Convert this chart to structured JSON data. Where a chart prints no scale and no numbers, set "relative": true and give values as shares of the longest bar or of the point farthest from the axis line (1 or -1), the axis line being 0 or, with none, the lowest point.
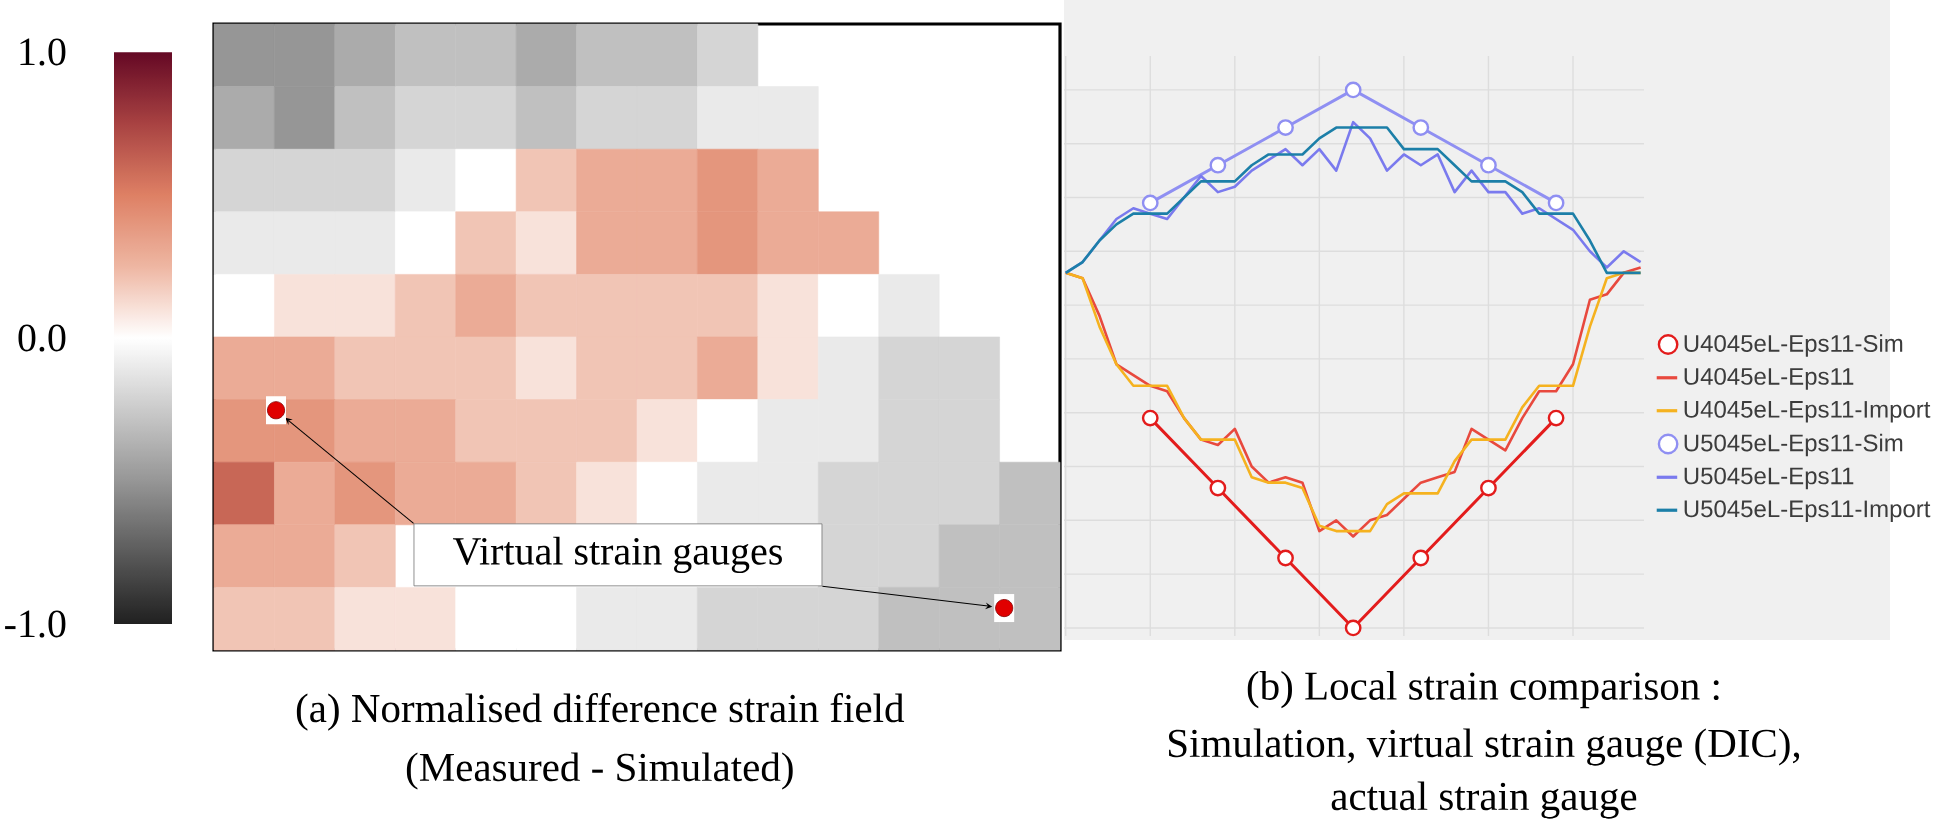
{
  "chart_data": [
    {
      "type": "heatmap",
      "title": "(a) Normalised difference strain field",
      "subtitle": "(Measured - Simulated)",
      "categories": [
        null,
        null,
        null,
        null,
        null,
        null,
        null,
        null,
        null,
        null,
        null,
        null,
        null,
        null
      ],
      "y_categories": [
        null,
        null,
        null,
        null,
        null,
        null,
        null,
        null,
        null,
        null
      ],
      "cells": [
        [
          -0.5,
          -0.5,
          -0.4,
          -0.3,
          -0.3,
          -0.4,
          -0.3,
          -0.3,
          -0.2,
          null,
          null,
          null,
          null,
          null
        ],
        [
          -0.4,
          -0.5,
          -0.3,
          -0.2,
          -0.2,
          -0.3,
          -0.2,
          -0.2,
          -0.1,
          -0.1,
          null,
          null,
          null,
          null
        ],
        [
          -0.2,
          -0.2,
          -0.2,
          -0.1,
          0.0,
          0.2,
          0.3,
          0.3,
          0.4,
          0.3,
          null,
          null,
          null,
          null
        ],
        [
          -0.1,
          -0.1,
          -0.1,
          0.0,
          0.2,
          0.1,
          0.3,
          0.3,
          0.4,
          0.3,
          0.3,
          null,
          null,
          null
        ],
        [
          0.0,
          0.1,
          0.1,
          0.2,
          0.3,
          0.2,
          0.2,
          0.2,
          0.2,
          0.1,
          0.0,
          -0.1,
          null,
          null
        ],
        [
          0.3,
          0.3,
          0.2,
          0.2,
          0.2,
          0.1,
          0.2,
          0.2,
          0.3,
          0.1,
          -0.1,
          -0.2,
          -0.2,
          null
        ],
        [
          0.4,
          0.4,
          0.3,
          0.3,
          0.2,
          0.2,
          0.2,
          0.1,
          0.0,
          -0.1,
          -0.1,
          -0.2,
          -0.2,
          null
        ],
        [
          0.6,
          0.3,
          0.4,
          0.3,
          0.3,
          0.2,
          0.1,
          0.0,
          -0.1,
          -0.1,
          -0.2,
          -0.2,
          -0.2,
          -0.3
        ],
        [
          0.3,
          0.3,
          0.2,
          null,
          null,
          null,
          null,
          null,
          null,
          null,
          -0.2,
          -0.2,
          -0.3,
          -0.3
        ],
        [
          0.2,
          0.2,
          0.1,
          0.1,
          0.0,
          0.0,
          -0.1,
          -0.1,
          -0.2,
          -0.2,
          -0.2,
          -0.3,
          -0.3,
          -0.3
        ]
      ],
      "clim": [
        -1,
        1
      ],
      "cticks": [
        {
          "value": 1,
          "label": "1.0"
        },
        {
          "value": 0,
          "label": "0.0"
        },
        {
          "value": -1,
          "label": "-1.0"
        }
      ],
      "annotations": [
        "Virtual strain gauges"
      ]
    },
    {
      "type": "line",
      "title": "(b) Local strain comparison :",
      "subtitle": "Simulation, virtual strain gauge (DIC), actual strain gauge",
      "categories": [
        null,
        null,
        null,
        null,
        null,
        null,
        null,
        null,
        null,
        null,
        null,
        null,
        null,
        null,
        null,
        null,
        null,
        null,
        null,
        null,
        null,
        null,
        null,
        null,
        null,
        null,
        null,
        null,
        null,
        null,
        null,
        null,
        null,
        null,
        null
      ],
      "relative": true,
      "grid": true,
      "legend": "right",
      "series": [
        {
          "name": "U4045eL-Eps11-Sim",
          "color": "#e31c1c",
          "marker": "circle",
          "values": [
            null,
            null,
            null,
            null,
            null,
            0.39,
            null,
            null,
            null,
            0.26,
            null,
            null,
            null,
            0.13,
            null,
            null,
            null,
            0.0,
            null,
            null,
            null,
            0.13,
            null,
            null,
            null,
            0.26,
            null,
            null,
            null,
            0.39,
            null,
            null,
            null,
            null,
            null
          ]
        },
        {
          "name": "U4045eL-Eps11",
          "color": "#e8493e",
          "values": [
            0.66,
            0.65,
            0.58,
            0.49,
            0.47,
            0.45,
            0.44,
            0.39,
            0.35,
            0.34,
            0.37,
            0.3,
            0.27,
            0.28,
            0.27,
            0.18,
            0.2,
            0.17,
            0.2,
            0.21,
            0.24,
            0.27,
            0.28,
            0.29,
            0.37,
            0.35,
            0.33,
            0.39,
            0.44,
            0.44,
            0.49,
            0.61,
            0.62,
            0.66,
            0.67
          ]
        },
        {
          "name": "U4045eL-Eps11-Import",
          "color": "#f5b21f",
          "values": [
            0.66,
            0.65,
            0.56,
            0.49,
            0.45,
            0.45,
            0.45,
            0.39,
            0.35,
            0.35,
            0.35,
            0.28,
            0.27,
            0.27,
            0.26,
            0.19,
            0.18,
            0.18,
            0.18,
            0.23,
            0.25,
            0.25,
            0.25,
            0.31,
            0.35,
            0.35,
            0.35,
            0.41,
            0.45,
            0.45,
            0.45,
            0.56,
            0.65,
            0.66,
            0.66
          ]
        },
        {
          "name": "U5045eL-Eps11-Sim",
          "color": "#8f8ff2",
          "marker": "circle",
          "values": [
            null,
            null,
            null,
            null,
            null,
            0.79,
            null,
            null,
            null,
            0.86,
            null,
            null,
            null,
            0.93,
            null,
            null,
            null,
            1.0,
            null,
            null,
            null,
            0.93,
            null,
            null,
            null,
            0.86,
            null,
            null,
            null,
            0.79,
            null,
            null,
            null,
            null,
            null
          ]
        },
        {
          "name": "U5045eL-Eps11",
          "color": "#7a7aee",
          "values": [
            0.66,
            0.68,
            0.72,
            0.76,
            0.78,
            0.77,
            0.76,
            0.8,
            0.84,
            0.81,
            0.82,
            0.85,
            0.87,
            0.89,
            0.86,
            0.89,
            0.85,
            0.94,
            0.91,
            0.85,
            0.88,
            0.86,
            0.88,
            0.81,
            0.85,
            0.81,
            0.81,
            0.77,
            0.78,
            0.76,
            0.74,
            0.7,
            0.67,
            0.7,
            0.68
          ]
        },
        {
          "name": "U5045eL-Eps11-Import",
          "color": "#1c7fa8",
          "values": [
            0.66,
            0.68,
            0.72,
            0.75,
            0.77,
            0.77,
            0.77,
            0.8,
            0.83,
            0.83,
            0.83,
            0.86,
            0.88,
            0.88,
            0.88,
            0.91,
            0.93,
            0.93,
            0.93,
            0.93,
            0.89,
            0.89,
            0.89,
            0.86,
            0.83,
            0.83,
            0.83,
            0.81,
            0.77,
            0.77,
            0.77,
            0.72,
            0.66,
            0.66,
            0.66
          ]
        }
      ]
    }
  ]
}
